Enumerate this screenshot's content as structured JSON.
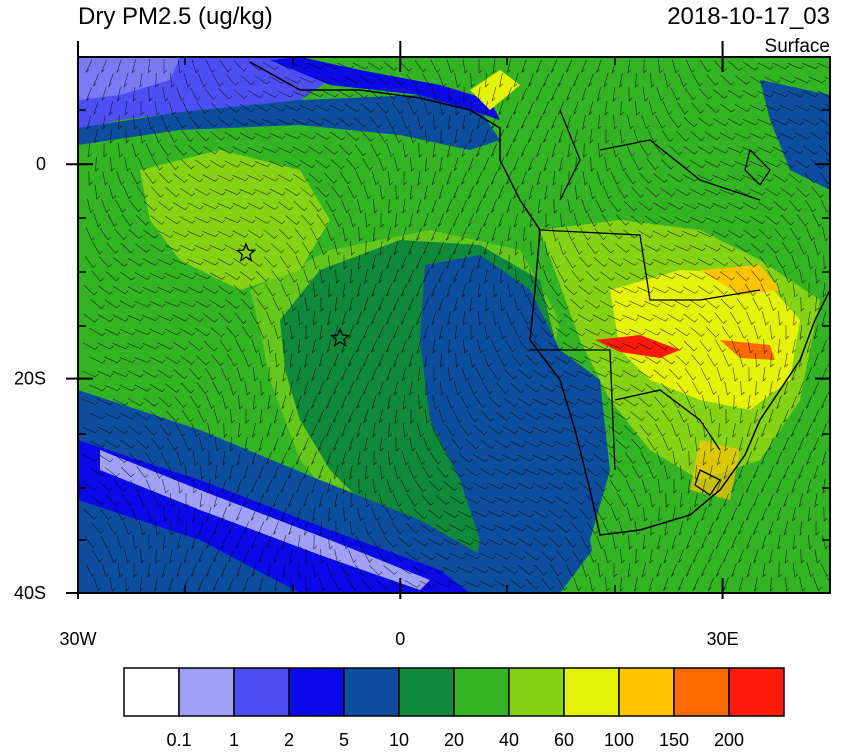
{
  "title": "Dry PM2.5 (ug/kg)",
  "time": "2018-10-17_03",
  "level": "Surface",
  "map": {
    "lon_range": [
      -30,
      40
    ],
    "lat_range": [
      -40,
      10
    ],
    "lon_ticks": [
      {
        "value": -30,
        "label": "30W"
      },
      0,
      {
        "value": 30,
        "label": "30E"
      }
    ],
    "lat_ticks": [
      0,
      {
        "value": -20,
        "label": "20S"
      },
      {
        "value": -40,
        "label": "40S"
      }
    ]
  },
  "colorbar": {
    "colors": [
      "#ffffff",
      "#a0a0f5",
      "#4e4ef5",
      "#0a0ae8",
      "#0d4d9e",
      "#10893b",
      "#34b424",
      "#86d316",
      "#e6f20a",
      "#ffc400",
      "#ff6a00",
      "#ff1a0a"
    ],
    "levels": [
      0.1,
      1,
      2,
      5,
      10,
      20,
      40,
      60,
      100,
      150,
      200
    ]
  }
}
